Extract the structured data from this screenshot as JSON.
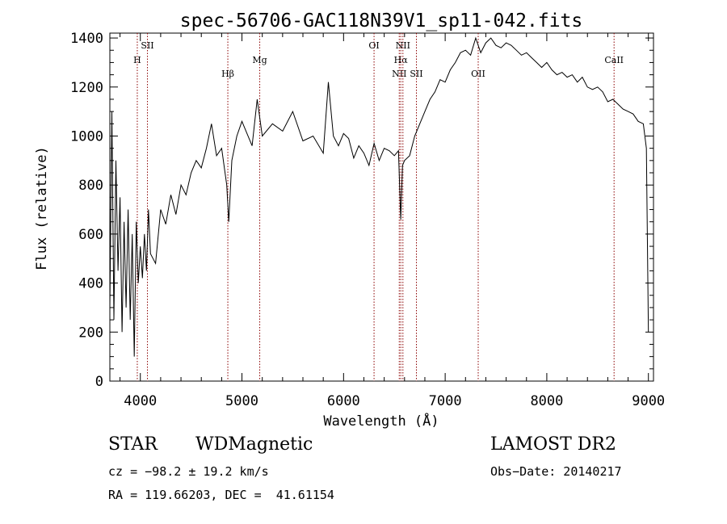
{
  "chart_data": {
    "type": "line",
    "title": "spec-56706-GAC118N39V1_sp11-042.fits",
    "xlabel": "Wavelength (Å)",
    "ylabel": "Flux (relative)",
    "xlim": [
      3700,
      9050
    ],
    "ylim": [
      0,
      1420
    ],
    "xticks": [
      4000,
      5000,
      6000,
      7000,
      8000,
      9000
    ],
    "yticks": [
      0,
      200,
      400,
      600,
      800,
      1000,
      1200,
      1400
    ],
    "grid": false,
    "series": [
      {
        "x": [
          3700,
          3720,
          3740,
          3760,
          3780,
          3800,
          3820,
          3840,
          3860,
          3880,
          3900,
          3920,
          3940,
          3960,
          3980,
          4000,
          4020,
          4040,
          4060,
          4080,
          4100,
          4150,
          4200,
          4250,
          4300,
          4350,
          4400,
          4450,
          4500,
          4550,
          4600,
          4650,
          4700,
          4750,
          4800,
          4850,
          4870,
          4900,
          4950,
          5000,
          5050,
          5100,
          5150,
          5200,
          5300,
          5400,
          5500,
          5600,
          5700,
          5800,
          5850,
          5900,
          5950,
          6000,
          6050,
          6100,
          6150,
          6200,
          6250,
          6300,
          6350,
          6400,
          6450,
          6500,
          6540,
          6563,
          6580,
          6600,
          6650,
          6700,
          6750,
          6800,
          6850,
          6900,
          6950,
          7000,
          7050,
          7100,
          7150,
          7200,
          7250,
          7300,
          7350,
          7400,
          7450,
          7500,
          7550,
          7600,
          7650,
          7700,
          7750,
          7800,
          7850,
          7900,
          7950,
          8000,
          8050,
          8100,
          8150,
          8200,
          8250,
          8300,
          8350,
          8400,
          8450,
          8500,
          8550,
          8600,
          8650,
          8700,
          8750,
          8800,
          8850,
          8900,
          8950,
          8980,
          9000
        ],
        "y": [
          300,
          1100,
          250,
          900,
          450,
          750,
          200,
          650,
          300,
          700,
          250,
          600,
          100,
          650,
          400,
          550,
          420,
          600,
          450,
          700,
          520,
          480,
          700,
          640,
          760,
          680,
          800,
          760,
          850,
          900,
          870,
          950,
          1050,
          920,
          950,
          800,
          650,
          900,
          1000,
          1060,
          1010,
          960,
          1150,
          1000,
          1050,
          1020,
          1100,
          980,
          1000,
          930,
          1220,
          1000,
          960,
          1010,
          990,
          910,
          960,
          930,
          880,
          970,
          900,
          950,
          940,
          920,
          940,
          660,
          880,
          900,
          920,
          1000,
          1050,
          1100,
          1150,
          1180,
          1230,
          1220,
          1270,
          1300,
          1340,
          1350,
          1330,
          1400,
          1340,
          1380,
          1400,
          1370,
          1360,
          1380,
          1370,
          1350,
          1330,
          1340,
          1320,
          1300,
          1280,
          1300,
          1270,
          1250,
          1260,
          1240,
          1250,
          1220,
          1240,
          1200,
          1190,
          1200,
          1180,
          1140,
          1150,
          1130,
          1110,
          1100,
          1090,
          1060,
          1050,
          950,
          200
        ]
      }
    ],
    "lines": [
      {
        "label": "H",
        "x": 3970,
        "row": 1
      },
      {
        "label": "SII",
        "x": 4070,
        "row": 0
      },
      {
        "label": "Hβ",
        "x": 4861,
        "row": 2
      },
      {
        "label": "Mg",
        "x": 5175,
        "row": 1
      },
      {
        "label": "OI",
        "x": 6300,
        "row": 0
      },
      {
        "label": "NII",
        "x": 6548,
        "row": 2
      },
      {
        "label": "Hα",
        "x": 6563,
        "row": 1
      },
      {
        "label": "NII",
        "x": 6584,
        "row": 0
      },
      {
        "label": "SII",
        "x": 6717,
        "row": 2
      },
      {
        "label": "OII",
        "x": 7325,
        "row": 2
      },
      {
        "label": "CaII",
        "x": 8662,
        "row": 1
      }
    ]
  },
  "info": {
    "object_class": "STAR",
    "subclass": "WDMagnetic",
    "survey": "LAMOST DR2",
    "cz": "cz = −98.2 ± 19.2 km/s",
    "obs_date": "Obs−Date: 20140217",
    "coords": "RA = 119.66203, DEC =  41.61154"
  }
}
